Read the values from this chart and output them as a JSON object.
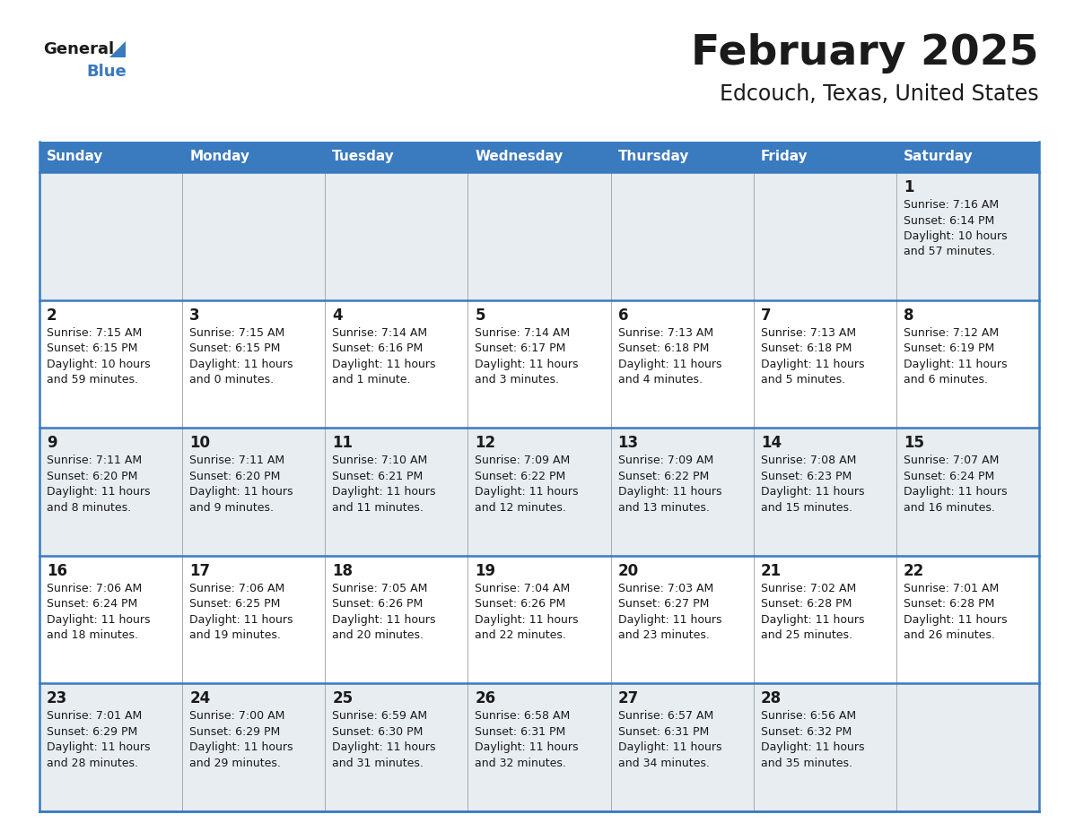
{
  "title": "February 2025",
  "subtitle": "Edcouch, Texas, United States",
  "header_color": "#3a7abf",
  "header_text_color": "#ffffff",
  "row_bg_even": "#e8edf2",
  "row_bg_odd": "#ffffff",
  "border_color": "#3a7abf",
  "text_color": "#1a1a1a",
  "days_of_week": [
    "Sunday",
    "Monday",
    "Tuesday",
    "Wednesday",
    "Thursday",
    "Friday",
    "Saturday"
  ],
  "calendar_data": [
    [
      null,
      null,
      null,
      null,
      null,
      null,
      {
        "day": "1",
        "sunrise": "7:16 AM",
        "sunset": "6:14 PM",
        "daylight_line1": "Daylight: 10 hours",
        "daylight_line2": "and 57 minutes."
      }
    ],
    [
      {
        "day": "2",
        "sunrise": "7:15 AM",
        "sunset": "6:15 PM",
        "daylight_line1": "Daylight: 10 hours",
        "daylight_line2": "and 59 minutes."
      },
      {
        "day": "3",
        "sunrise": "7:15 AM",
        "sunset": "6:15 PM",
        "daylight_line1": "Daylight: 11 hours",
        "daylight_line2": "and 0 minutes."
      },
      {
        "day": "4",
        "sunrise": "7:14 AM",
        "sunset": "6:16 PM",
        "daylight_line1": "Daylight: 11 hours",
        "daylight_line2": "and 1 minute."
      },
      {
        "day": "5",
        "sunrise": "7:14 AM",
        "sunset": "6:17 PM",
        "daylight_line1": "Daylight: 11 hours",
        "daylight_line2": "and 3 minutes."
      },
      {
        "day": "6",
        "sunrise": "7:13 AM",
        "sunset": "6:18 PM",
        "daylight_line1": "Daylight: 11 hours",
        "daylight_line2": "and 4 minutes."
      },
      {
        "day": "7",
        "sunrise": "7:13 AM",
        "sunset": "6:18 PM",
        "daylight_line1": "Daylight: 11 hours",
        "daylight_line2": "and 5 minutes."
      },
      {
        "day": "8",
        "sunrise": "7:12 AM",
        "sunset": "6:19 PM",
        "daylight_line1": "Daylight: 11 hours",
        "daylight_line2": "and 6 minutes."
      }
    ],
    [
      {
        "day": "9",
        "sunrise": "7:11 AM",
        "sunset": "6:20 PM",
        "daylight_line1": "Daylight: 11 hours",
        "daylight_line2": "and 8 minutes."
      },
      {
        "day": "10",
        "sunrise": "7:11 AM",
        "sunset": "6:20 PM",
        "daylight_line1": "Daylight: 11 hours",
        "daylight_line2": "and 9 minutes."
      },
      {
        "day": "11",
        "sunrise": "7:10 AM",
        "sunset": "6:21 PM",
        "daylight_line1": "Daylight: 11 hours",
        "daylight_line2": "and 11 minutes."
      },
      {
        "day": "12",
        "sunrise": "7:09 AM",
        "sunset": "6:22 PM",
        "daylight_line1": "Daylight: 11 hours",
        "daylight_line2": "and 12 minutes."
      },
      {
        "day": "13",
        "sunrise": "7:09 AM",
        "sunset": "6:22 PM",
        "daylight_line1": "Daylight: 11 hours",
        "daylight_line2": "and 13 minutes."
      },
      {
        "day": "14",
        "sunrise": "7:08 AM",
        "sunset": "6:23 PM",
        "daylight_line1": "Daylight: 11 hours",
        "daylight_line2": "and 15 minutes."
      },
      {
        "day": "15",
        "sunrise": "7:07 AM",
        "sunset": "6:24 PM",
        "daylight_line1": "Daylight: 11 hours",
        "daylight_line2": "and 16 minutes."
      }
    ],
    [
      {
        "day": "16",
        "sunrise": "7:06 AM",
        "sunset": "6:24 PM",
        "daylight_line1": "Daylight: 11 hours",
        "daylight_line2": "and 18 minutes."
      },
      {
        "day": "17",
        "sunrise": "7:06 AM",
        "sunset": "6:25 PM",
        "daylight_line1": "Daylight: 11 hours",
        "daylight_line2": "and 19 minutes."
      },
      {
        "day": "18",
        "sunrise": "7:05 AM",
        "sunset": "6:26 PM",
        "daylight_line1": "Daylight: 11 hours",
        "daylight_line2": "and 20 minutes."
      },
      {
        "day": "19",
        "sunrise": "7:04 AM",
        "sunset": "6:26 PM",
        "daylight_line1": "Daylight: 11 hours",
        "daylight_line2": "and 22 minutes."
      },
      {
        "day": "20",
        "sunrise": "7:03 AM",
        "sunset": "6:27 PM",
        "daylight_line1": "Daylight: 11 hours",
        "daylight_line2": "and 23 minutes."
      },
      {
        "day": "21",
        "sunrise": "7:02 AM",
        "sunset": "6:28 PM",
        "daylight_line1": "Daylight: 11 hours",
        "daylight_line2": "and 25 minutes."
      },
      {
        "day": "22",
        "sunrise": "7:01 AM",
        "sunset": "6:28 PM",
        "daylight_line1": "Daylight: 11 hours",
        "daylight_line2": "and 26 minutes."
      }
    ],
    [
      {
        "day": "23",
        "sunrise": "7:01 AM",
        "sunset": "6:29 PM",
        "daylight_line1": "Daylight: 11 hours",
        "daylight_line2": "and 28 minutes."
      },
      {
        "day": "24",
        "sunrise": "7:00 AM",
        "sunset": "6:29 PM",
        "daylight_line1": "Daylight: 11 hours",
        "daylight_line2": "and 29 minutes."
      },
      {
        "day": "25",
        "sunrise": "6:59 AM",
        "sunset": "6:30 PM",
        "daylight_line1": "Daylight: 11 hours",
        "daylight_line2": "and 31 minutes."
      },
      {
        "day": "26",
        "sunrise": "6:58 AM",
        "sunset": "6:31 PM",
        "daylight_line1": "Daylight: 11 hours",
        "daylight_line2": "and 32 minutes."
      },
      {
        "day": "27",
        "sunrise": "6:57 AM",
        "sunset": "6:31 PM",
        "daylight_line1": "Daylight: 11 hours",
        "daylight_line2": "and 34 minutes."
      },
      {
        "day": "28",
        "sunrise": "6:56 AM",
        "sunset": "6:32 PM",
        "daylight_line1": "Daylight: 11 hours",
        "daylight_line2": "and 35 minutes."
      },
      null
    ]
  ]
}
